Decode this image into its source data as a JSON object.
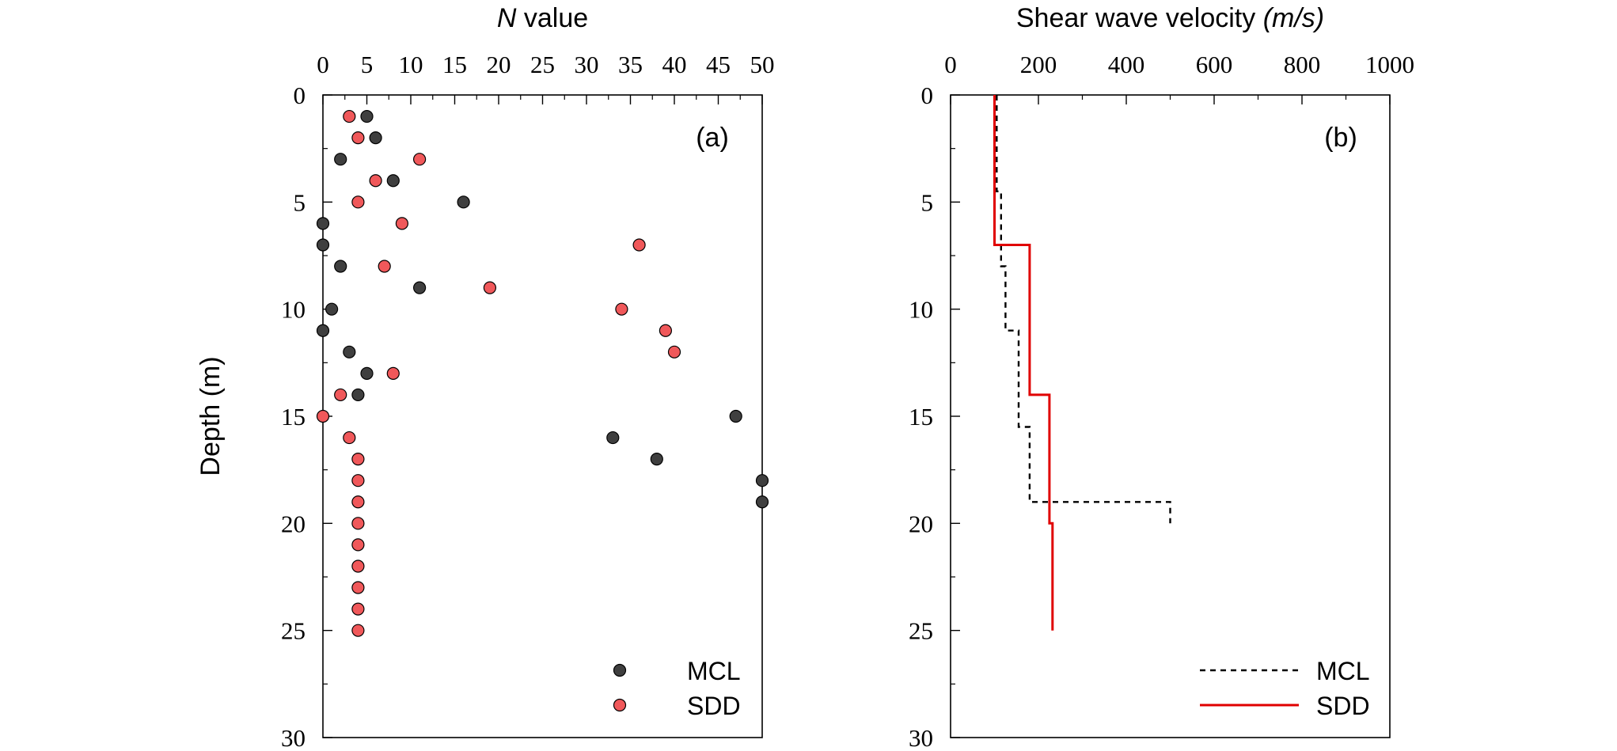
{
  "chart_data": [
    {
      "type": "scatter",
      "panel_label": "(a)",
      "xlabel_italic": "N",
      "xlabel_rest": " value",
      "ylabel": "Depth (m)",
      "xlim": [
        0,
        50
      ],
      "ylim": [
        0,
        30
      ],
      "y_inverted": true,
      "x_axis_position": "top",
      "x_ticks": [
        "0",
        "5",
        "10",
        "15",
        "20",
        "25",
        "30",
        "35",
        "40",
        "45",
        "50"
      ],
      "y_ticks": [
        "0",
        "5",
        "10",
        "15",
        "20",
        "25",
        "30"
      ],
      "legend_position": "bottom-right",
      "series": [
        {
          "name": "MCL",
          "color": "#3f3f3f",
          "points": [
            [
              5,
              1
            ],
            [
              6,
              2
            ],
            [
              2,
              3
            ],
            [
              8,
              4
            ],
            [
              16,
              5
            ],
            [
              0,
              6
            ],
            [
              0,
              7
            ],
            [
              2,
              8
            ],
            [
              11,
              9
            ],
            [
              1,
              10
            ],
            [
              0,
              11
            ],
            [
              3,
              12
            ],
            [
              5,
              13
            ],
            [
              4,
              14
            ],
            [
              47,
              15
            ],
            [
              33,
              16
            ],
            [
              38,
              17
            ],
            [
              50,
              18
            ],
            [
              50,
              19
            ]
          ]
        },
        {
          "name": "SDD",
          "color": "#f0585a",
          "points": [
            [
              3,
              1
            ],
            [
              4,
              2
            ],
            [
              11,
              3
            ],
            [
              6,
              4
            ],
            [
              4,
              5
            ],
            [
              9,
              6
            ],
            [
              36,
              7
            ],
            [
              7,
              8
            ],
            [
              19,
              9
            ],
            [
              34,
              10
            ],
            [
              39,
              11
            ],
            [
              40,
              12
            ],
            [
              8,
              13
            ],
            [
              2,
              14
            ],
            [
              0,
              15
            ],
            [
              3,
              16
            ],
            [
              4,
              17
            ],
            [
              4,
              18
            ],
            [
              4,
              19
            ],
            [
              4,
              20
            ],
            [
              4,
              21
            ],
            [
              4,
              22
            ],
            [
              4,
              23
            ],
            [
              4,
              24
            ],
            [
              4,
              25
            ]
          ]
        }
      ]
    },
    {
      "type": "line",
      "panel_label": "(b)",
      "xlabel_text": "Shear wave velocity ",
      "xlabel_italic": "(m/s)",
      "xlim": [
        0,
        1000
      ],
      "ylim": [
        0,
        30
      ],
      "y_inverted": true,
      "x_axis_position": "top",
      "x_ticks": [
        "0",
        "200",
        "400",
        "600",
        "800",
        "1000"
      ],
      "y_ticks": [
        "0",
        "5",
        "10",
        "15",
        "20",
        "25",
        "30"
      ],
      "legend_position": "bottom-right",
      "series": [
        {
          "name": "MCL",
          "color": "#000000",
          "dash": "dashed",
          "points": [
            [
              105,
              0
            ],
            [
              105,
              4.5
            ],
            [
              115,
              4.5
            ],
            [
              115,
              8
            ],
            [
              125,
              8
            ],
            [
              125,
              11
            ],
            [
              155,
              11
            ],
            [
              155,
              15.5
            ],
            [
              180,
              15.5
            ],
            [
              180,
              19
            ],
            [
              500,
              19
            ],
            [
              500,
              20
            ]
          ]
        },
        {
          "name": "SDD",
          "color": "#e00000",
          "dash": "solid",
          "points": [
            [
              100,
              0
            ],
            [
              100,
              7
            ],
            [
              180,
              7
            ],
            [
              180,
              14
            ],
            [
              225,
              14
            ],
            [
              225,
              20
            ],
            [
              232,
              20
            ],
            [
              232,
              25
            ]
          ]
        }
      ]
    }
  ]
}
